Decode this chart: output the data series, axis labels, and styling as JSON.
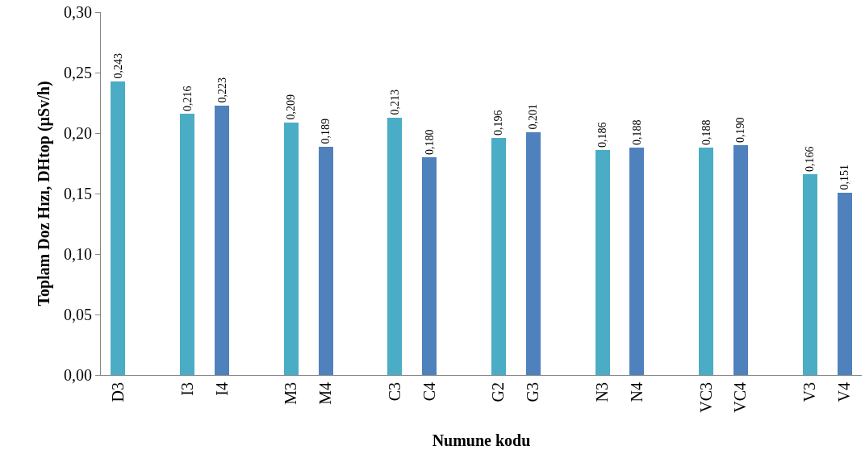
{
  "chart_data": {
    "type": "bar",
    "xlabel": "Numune kodu",
    "ylabel": "Toplam Doz Hızı, DHtop (µSv/h)",
    "categories": [
      "D3",
      null,
      "I3",
      "I4",
      null,
      "M3",
      "M4",
      null,
      "C3",
      "C4",
      null,
      "G2",
      "G3",
      null,
      "N3",
      "N4",
      null,
      "VC3",
      "VC4",
      null,
      "V3",
      "V4"
    ],
    "values": [
      0.243,
      null,
      0.216,
      0.223,
      null,
      0.209,
      0.189,
      null,
      0.213,
      0.18,
      null,
      0.196,
      0.201,
      null,
      0.186,
      0.188,
      null,
      0.188,
      0.19,
      null,
      0.166,
      0.151
    ],
    "value_labels": [
      "0,243",
      null,
      "0,216",
      "0,223",
      null,
      "0,209",
      "0,189",
      null,
      "0,213",
      "0,180",
      null,
      "0,196",
      "0,201",
      null,
      "0,186",
      "0,188",
      null,
      "0,188",
      "0,190",
      null,
      "0,166",
      "0,151"
    ],
    "colors": [
      "#4bacc6",
      null,
      "#4bacc6",
      "#4f81bd",
      null,
      "#4bacc6",
      "#4f81bd",
      null,
      "#4bacc6",
      "#4f81bd",
      null,
      "#4bacc6",
      "#4f81bd",
      null,
      "#4bacc6",
      "#4f81bd",
      null,
      "#4bacc6",
      "#4f81bd",
      null,
      "#4bacc6",
      "#4f81bd"
    ],
    "ylim": [
      0,
      0.3
    ],
    "yticks": [
      {
        "value": 0,
        "label": "0,00"
      },
      {
        "value": 0.05,
        "label": "0,05"
      },
      {
        "value": 0.1,
        "label": "0,10"
      },
      {
        "value": 0.15,
        "label": "0,15"
      },
      {
        "value": 0.2,
        "label": "0,20"
      },
      {
        "value": 0.25,
        "label": "0,25"
      },
      {
        "value": 0.3,
        "label": "0,30"
      }
    ],
    "grid": false
  }
}
